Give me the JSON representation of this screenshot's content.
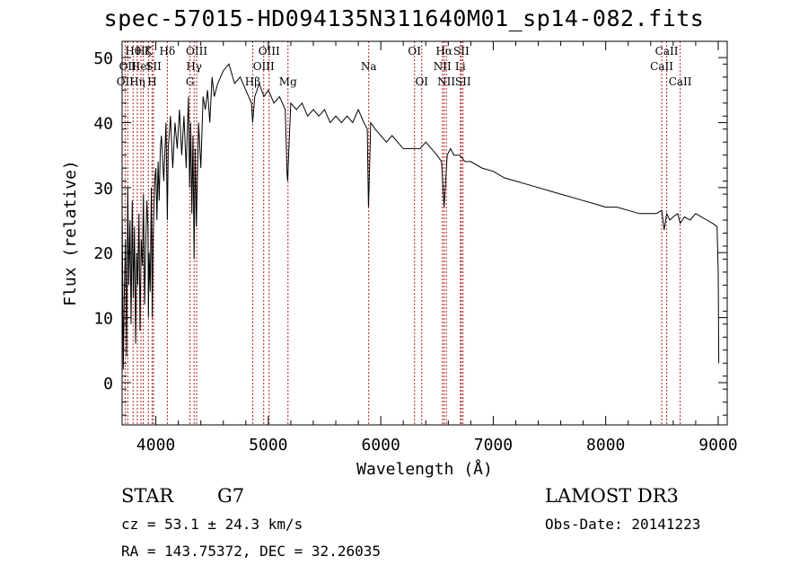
{
  "chart_data": {
    "type": "line",
    "title": "spec-57015-HD094135N311640M01_sp14-082.fits",
    "xlabel": "Wavelength (Å)",
    "ylabel": "Flux (relative)",
    "xlim": [
      3700,
      9080
    ],
    "ylim": [
      -6.5,
      52.5
    ],
    "x_ticks": [
      4000,
      5000,
      6000,
      7000,
      8000,
      9000
    ],
    "y_ticks": [
      0,
      10,
      20,
      30,
      40,
      50
    ],
    "series": [
      {
        "name": "spectrum",
        "x": [
          3700,
          3710,
          3720,
          3730,
          3740,
          3750,
          3760,
          3770,
          3780,
          3790,
          3800,
          3810,
          3820,
          3830,
          3840,
          3850,
          3860,
          3870,
          3880,
          3890,
          3900,
          3910,
          3920,
          3930,
          3934,
          3940,
          3950,
          3960,
          3968,
          3975,
          3990,
          4000,
          4010,
          4020,
          4030,
          4040,
          4050,
          4070,
          4090,
          4102,
          4110,
          4130,
          4150,
          4170,
          4190,
          4210,
          4230,
          4250,
          4270,
          4290,
          4300,
          4310,
          4320,
          4330,
          4340,
          4350,
          4360,
          4380,
          4400,
          4420,
          4440,
          4460,
          4480,
          4500,
          4520,
          4550,
          4600,
          4650,
          4700,
          4750,
          4800,
          4850,
          4861,
          4880,
          4920,
          4960,
          5000,
          5050,
          5100,
          5150,
          5167,
          5172,
          5183,
          5200,
          5250,
          5300,
          5350,
          5400,
          5450,
          5500,
          5550,
          5600,
          5650,
          5700,
          5750,
          5800,
          5850,
          5880,
          5890,
          5896,
          5910,
          5950,
          6000,
          6050,
          6100,
          6150,
          6200,
          6250,
          6300,
          6350,
          6400,
          6450,
          6500,
          6540,
          6563,
          6590,
          6620,
          6650,
          6700,
          6750,
          6800,
          6900,
          7000,
          7100,
          7200,
          7300,
          7400,
          7500,
          7600,
          7700,
          7800,
          7900,
          8000,
          8100,
          8200,
          8300,
          8400,
          8450,
          8498,
          8520,
          8542,
          8570,
          8600,
          8640,
          8662,
          8700,
          8750,
          8800,
          8850,
          8900,
          8950,
          8990,
          9000,
          9005
        ],
        "values": [
          28,
          2,
          14,
          22,
          4,
          30,
          15,
          25,
          9,
          28,
          13,
          24,
          6,
          20,
          15,
          26,
          8,
          22,
          18,
          29,
          12,
          21,
          28,
          24,
          10,
          20,
          14,
          30,
          10,
          22,
          31,
          33,
          25,
          34,
          28,
          36,
          38,
          31,
          40,
          25,
          36,
          41,
          33,
          40,
          36,
          42,
          35,
          41,
          33,
          44,
          30,
          40,
          26,
          38,
          19,
          36,
          24,
          40,
          33,
          44,
          42,
          45,
          40,
          47,
          44,
          46,
          48,
          49,
          46,
          47,
          45,
          43,
          40,
          44,
          46,
          44,
          45,
          43,
          44,
          42,
          32,
          31,
          36,
          43,
          42,
          43,
          41,
          42,
          41,
          42,
          40,
          41,
          40,
          41,
          40,
          42,
          40,
          39,
          27,
          30,
          40,
          39,
          38,
          37,
          38,
          37,
          36,
          36,
          36,
          36,
          37,
          36,
          35,
          34,
          27,
          35,
          36,
          35,
          35,
          34,
          34,
          33,
          32.5,
          31.5,
          31,
          30.5,
          30,
          29.5,
          29,
          28.5,
          28,
          27.5,
          27,
          27,
          26.5,
          26,
          26,
          26,
          26.5,
          23.5,
          26,
          25,
          25.5,
          26,
          24.5,
          25.5,
          25,
          26,
          25.5,
          25,
          24.5,
          24,
          17,
          3
        ]
      }
    ],
    "line_labels": [
      {
        "wavelength": 3727,
        "name": "OII",
        "row": 3
      },
      {
        "wavelength": 3750,
        "name": "OII",
        "row": 2
      },
      {
        "wavelength": 3798,
        "name": "Hθ",
        "row": 1
      },
      {
        "wavelength": 3835,
        "name": "Hη",
        "row": 3
      },
      {
        "wavelength": 3868,
        "name": "HeI",
        "row": 2
      },
      {
        "wavelength": 3889,
        "name": "Hζ",
        "row": 1
      },
      {
        "wavelength": 3934,
        "name": "K",
        "row": 1
      },
      {
        "wavelength": 3967,
        "name": "H",
        "row": 3
      },
      {
        "wavelength": 3980,
        "name": "SII",
        "row": 2
      },
      {
        "wavelength": 4102,
        "name": "Hδ",
        "row": 1
      },
      {
        "wavelength": 4304,
        "name": "G",
        "row": 3
      },
      {
        "wavelength": 4340,
        "name": "Hγ",
        "row": 2
      },
      {
        "wavelength": 4363,
        "name": "OIII",
        "row": 1
      },
      {
        "wavelength": 4861,
        "name": "Hβ",
        "row": 3
      },
      {
        "wavelength": 4959,
        "name": "OIII",
        "row": 2
      },
      {
        "wavelength": 5007,
        "name": "OIII",
        "row": 1
      },
      {
        "wavelength": 5175,
        "name": "Mg",
        "row": 3
      },
      {
        "wavelength": 5893,
        "name": "Na",
        "row": 2
      },
      {
        "wavelength": 6300,
        "name": "OI",
        "row": 1
      },
      {
        "wavelength": 6364,
        "name": "OI",
        "row": 3
      },
      {
        "wavelength": 6548,
        "name": "NII",
        "row": 2
      },
      {
        "wavelength": 6563,
        "name": "Hα",
        "row": 1
      },
      {
        "wavelength": 6583,
        "name": "NII",
        "row": 3
      },
      {
        "wavelength": 6708,
        "name": "Li",
        "row": 2
      },
      {
        "wavelength": 6716,
        "name": "SII",
        "row": 1
      },
      {
        "wavelength": 6731,
        "name": "SII",
        "row": 3
      },
      {
        "wavelength": 8498,
        "name": "CaII",
        "row": 2
      },
      {
        "wavelength": 8542,
        "name": "CaII",
        "row": 1
      },
      {
        "wavelength": 8662,
        "name": "CaII",
        "row": 3
      }
    ],
    "grid": false,
    "marker_line_color": "#b22222"
  },
  "info": {
    "object_type": "STAR",
    "subclass": "G7",
    "survey": "LAMOST DR3",
    "cz": "cz = 53.1 ± 24.3 km/s",
    "obs_date": "Obs-Date: 20141223",
    "coords": "RA = 143.75372, DEC =  32.26035"
  }
}
